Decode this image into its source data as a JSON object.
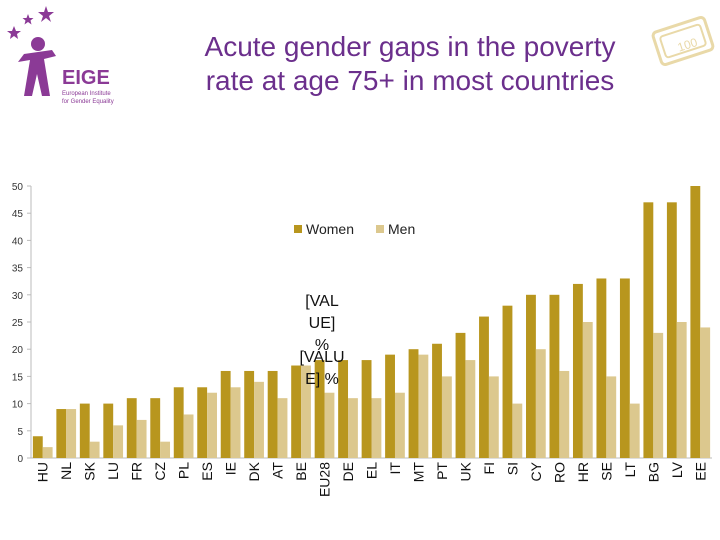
{
  "title_line1": "Acute gender gaps in the poverty",
  "title_line2": "rate at age 75+ in most countries",
  "logo": {
    "name": "EIGE",
    "subtitle_line1": "European Institute",
    "subtitle_line2": "for Gender Equality"
  },
  "stamp_text": "100",
  "colors": {
    "women": "#b8961e",
    "men": "#dcc88e",
    "title": "#6b2f8c",
    "logo": "#8b3a96"
  },
  "chart_data": {
    "type": "bar",
    "title": "",
    "xlabel": "",
    "ylabel": "",
    "ylim": [
      0,
      50
    ],
    "yticks": [
      0,
      5,
      10,
      15,
      20,
      25,
      30,
      35,
      40,
      45,
      50
    ],
    "grid": false,
    "legend_position": "top-center",
    "categories": [
      "HU",
      "NL",
      "SK",
      "LU",
      "FR",
      "CZ",
      "PL",
      "ES",
      "IE",
      "DK",
      "AT",
      "BE",
      "EU28",
      "DE",
      "EL",
      "IT",
      "MT",
      "PT",
      "UK",
      "FI",
      "SI",
      "CY",
      "RO",
      "HR",
      "SE",
      "LT",
      "BG",
      "LV",
      "EE"
    ],
    "series": [
      {
        "name": "Women",
        "values": [
          4,
          9,
          10,
          10,
          11,
          11,
          13,
          13,
          16,
          16,
          16,
          17,
          18,
          18,
          18,
          19,
          20,
          21,
          23,
          26,
          28,
          30,
          30,
          32,
          33,
          33,
          47,
          47,
          50
        ]
      },
      {
        "name": "Men",
        "values": [
          2,
          9,
          3,
          6,
          7,
          3,
          8,
          12,
          13,
          14,
          11,
          17,
          12,
          11,
          11,
          12,
          19,
          15,
          18,
          15,
          10,
          20,
          16,
          25,
          15,
          10,
          23,
          25,
          24
        ]
      }
    ],
    "data_label_placeholder": {
      "line1": "[VAL",
      "line2": "UE]",
      "line3": "%",
      "line4": "[VALU",
      "line5": "E] %"
    }
  }
}
